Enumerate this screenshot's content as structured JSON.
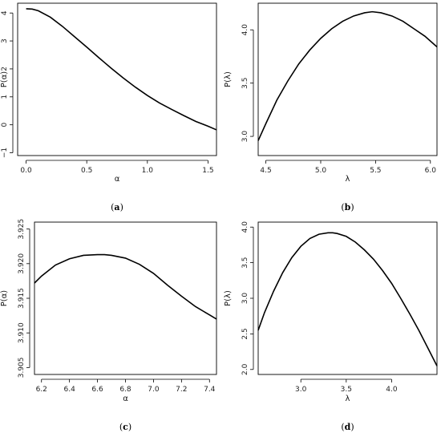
{
  "chart_data": [
    {
      "panel": "a",
      "type": "line",
      "xlabel": "α",
      "ylabel": "P(α)",
      "xlim": [
        -0.07,
        1.57
      ],
      "ylim": [
        -1.1,
        4.35
      ],
      "xticks": [
        0.0,
        0.5,
        1.0,
        1.5
      ],
      "xtick_labels": [
        "0.0",
        "0.5",
        "1.0",
        "1.5"
      ],
      "yticks": [
        -1,
        0,
        1,
        2,
        3,
        4
      ],
      "ytick_labels": [
        "−1",
        "0",
        "1",
        "2",
        "3",
        "4"
      ],
      "caption_prefix": "(",
      "caption_letter": "a",
      "caption_suffix": ")",
      "series": [
        {
          "x": [
            0.0,
            0.05,
            0.1,
            0.2,
            0.3,
            0.4,
            0.5,
            0.6,
            0.7,
            0.8,
            0.9,
            1.0,
            1.1,
            1.2,
            1.3,
            1.4,
            1.5,
            1.57
          ],
          "y": [
            4.15,
            4.14,
            4.08,
            3.85,
            3.52,
            3.15,
            2.78,
            2.4,
            2.03,
            1.68,
            1.35,
            1.05,
            0.78,
            0.55,
            0.33,
            0.12,
            -0.05,
            -0.18
          ]
        }
      ]
    },
    {
      "panel": "b",
      "type": "line",
      "xlabel": "λ",
      "ylabel": "P(λ)",
      "xlim": [
        4.43,
        6.06
      ],
      "ylim": [
        2.82,
        4.25
      ],
      "xticks": [
        4.5,
        5.0,
        5.5,
        6.0
      ],
      "xtick_labels": [
        "4.5",
        "5.0",
        "5.5",
        "6.0"
      ],
      "yticks": [
        3.0,
        3.5,
        4.0
      ],
      "ytick_labels": [
        "3.0",
        "3.5",
        "4.0"
      ],
      "caption_prefix": "(",
      "caption_letter": "b",
      "caption_suffix": ")",
      "series": [
        {
          "x": [
            4.43,
            4.5,
            4.6,
            4.7,
            4.8,
            4.9,
            5.0,
            5.1,
            5.2,
            5.3,
            5.4,
            5.47,
            5.55,
            5.65,
            5.75,
            5.85,
            5.95,
            6.06
          ],
          "y": [
            2.96,
            3.12,
            3.34,
            3.52,
            3.68,
            3.81,
            3.92,
            4.01,
            4.08,
            4.13,
            4.16,
            4.17,
            4.16,
            4.13,
            4.08,
            4.01,
            3.94,
            3.84
          ]
        }
      ]
    },
    {
      "panel": "c",
      "type": "line",
      "xlabel": "α",
      "ylabel": "P(α)",
      "xlim": [
        6.15,
        7.45
      ],
      "ylim": [
        3.904,
        3.926
      ],
      "xticks": [
        6.2,
        6.4,
        6.6,
        6.8,
        7.0,
        7.2,
        7.4
      ],
      "xtick_labels": [
        "6.2",
        "6.4",
        "6.6",
        "6.8",
        "7.0",
        "7.2",
        "7.4"
      ],
      "yticks": [
        3.905,
        3.91,
        3.915,
        3.92,
        3.925
      ],
      "ytick_labels": [
        "3.905",
        "3.910",
        "3.915",
        "3.920",
        "3.925"
      ],
      "caption_prefix": "(",
      "caption_letter": "c",
      "caption_suffix": ")",
      "series": [
        {
          "x": [
            6.15,
            6.2,
            6.3,
            6.4,
            6.5,
            6.6,
            6.65,
            6.7,
            6.8,
            6.9,
            7.0,
            7.1,
            7.2,
            7.3,
            7.4,
            7.45
          ],
          "y": [
            3.9172,
            3.9182,
            3.9198,
            3.9207,
            3.9212,
            3.9213,
            3.9213,
            3.9212,
            3.9208,
            3.9199,
            3.9186,
            3.9169,
            3.9153,
            3.9138,
            3.9126,
            3.912
          ]
        }
      ]
    },
    {
      "panel": "d",
      "type": "line",
      "xlabel": "λ",
      "ylabel": "P(λ)",
      "xlim": [
        2.53,
        4.5
      ],
      "ylim": [
        1.93,
        4.07
      ],
      "xticks": [
        3.0,
        3.5,
        4.0
      ],
      "xtick_labels": [
        "3.0",
        "3.5",
        "4.0"
      ],
      "yticks": [
        2.0,
        2.5,
        3.0,
        3.5,
        4.0
      ],
      "ytick_labels": [
        "2.0",
        "2.5",
        "3.0",
        "3.5",
        "4.0"
      ],
      "caption_prefix": "(",
      "caption_letter": "d",
      "caption_suffix": ")",
      "series": [
        {
          "x": [
            2.53,
            2.6,
            2.7,
            2.8,
            2.9,
            3.0,
            3.1,
            3.2,
            3.3,
            3.35,
            3.4,
            3.5,
            3.6,
            3.7,
            3.8,
            3.9,
            4.0,
            4.1,
            4.2,
            4.3,
            4.4,
            4.5
          ],
          "y": [
            2.55,
            2.8,
            3.1,
            3.36,
            3.57,
            3.73,
            3.84,
            3.9,
            3.92,
            3.92,
            3.91,
            3.87,
            3.79,
            3.68,
            3.55,
            3.39,
            3.21,
            3.0,
            2.78,
            2.55,
            2.3,
            2.05
          ]
        }
      ]
    }
  ]
}
